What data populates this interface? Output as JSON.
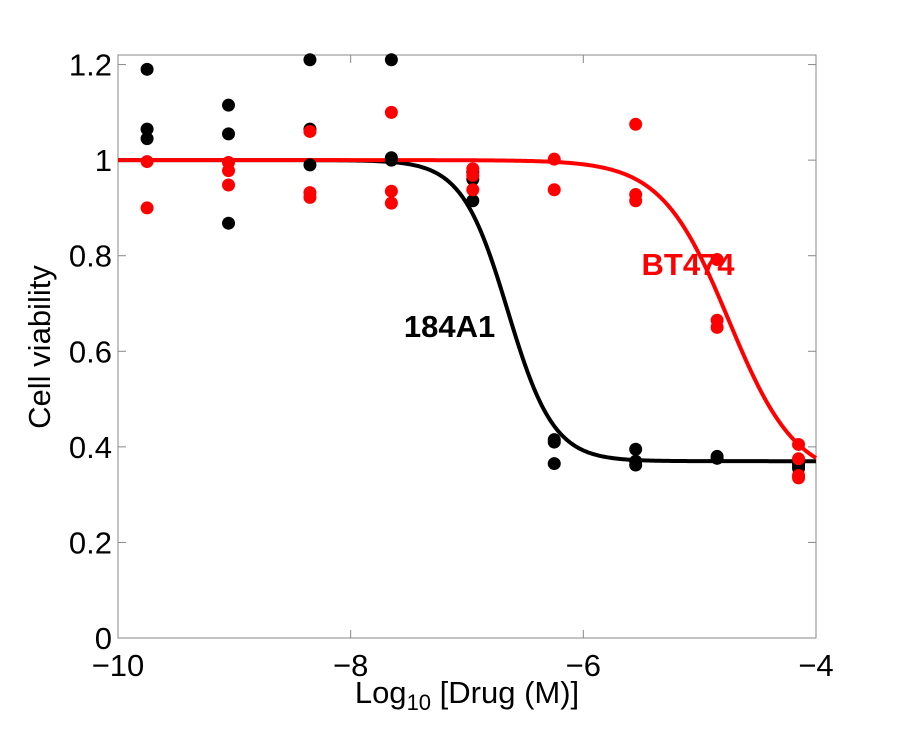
{
  "chart_data": {
    "type": "scatter",
    "xlabel": {
      "base": "Log",
      "sub": "10",
      "rest": " [Drug (M)]"
    },
    "ylabel": "Cell viability",
    "xlim": [
      -10,
      -4
    ],
    "ylim": [
      0,
      1.22
    ],
    "xticks": [
      -10,
      -8,
      -6,
      -4
    ],
    "xtick_labels": [
      "−10",
      "−8",
      "−6",
      "−4"
    ],
    "yticks": [
      0,
      0.2,
      0.4,
      0.6,
      0.8,
      1,
      1.2
    ],
    "ytick_labels": [
      "0",
      "0.2",
      "0.4",
      "0.6",
      "0.8",
      "1",
      "1.2"
    ],
    "grid": false,
    "series": [
      {
        "name": "184A1",
        "color": "#000000",
        "fit": {
          "top": 1.0,
          "bottom": 0.37,
          "log_ec50": -6.65,
          "hill": 2.2
        },
        "points": [
          [
            -9.75,
            1.19
          ],
          [
            -9.75,
            1.065
          ],
          [
            -9.75,
            1.045
          ],
          [
            -9.05,
            1.115
          ],
          [
            -9.05,
            1.055
          ],
          [
            -9.05,
            0.868
          ],
          [
            -8.35,
            1.21
          ],
          [
            -8.35,
            1.065
          ],
          [
            -8.35,
            0.99
          ],
          [
            -7.65,
            1.21
          ],
          [
            -7.65,
            1.005
          ],
          [
            -7.65,
            1.0
          ],
          [
            -6.95,
            0.975
          ],
          [
            -6.95,
            0.96
          ],
          [
            -6.95,
            0.915
          ],
          [
            -6.25,
            0.415
          ],
          [
            -6.25,
            0.41
          ],
          [
            -6.25,
            0.365
          ],
          [
            -5.55,
            0.395
          ],
          [
            -5.55,
            0.37
          ],
          [
            -5.55,
            0.362
          ],
          [
            -4.85,
            0.38
          ],
          [
            -4.85,
            0.376
          ],
          [
            -4.15,
            0.365
          ],
          [
            -4.15,
            0.36
          ],
          [
            -4.15,
            0.355
          ]
        ]
      },
      {
        "name": "BT474",
        "color": "#ff0000",
        "fit": {
          "top": 1.0,
          "bottom": 0.33,
          "log_ec50": -4.75,
          "hill": 1.5
        },
        "points": [
          [
            -9.75,
            0.997
          ],
          [
            -9.75,
            0.9
          ],
          [
            -9.05,
            0.995
          ],
          [
            -9.05,
            0.978
          ],
          [
            -9.05,
            0.948
          ],
          [
            -8.35,
            1.06
          ],
          [
            -8.35,
            0.932
          ],
          [
            -8.35,
            0.922
          ],
          [
            -7.65,
            1.1
          ],
          [
            -7.65,
            0.935
          ],
          [
            -7.65,
            0.91
          ],
          [
            -6.95,
            0.982
          ],
          [
            -6.95,
            0.968
          ],
          [
            -6.95,
            0.938
          ],
          [
            -6.25,
            1.002
          ],
          [
            -6.25,
            0.938
          ],
          [
            -5.55,
            1.075
          ],
          [
            -5.55,
            0.928
          ],
          [
            -5.55,
            0.915
          ],
          [
            -4.85,
            0.792
          ],
          [
            -4.85,
            0.665
          ],
          [
            -4.85,
            0.65
          ],
          [
            -4.15,
            0.405
          ],
          [
            -4.15,
            0.375
          ],
          [
            -4.15,
            0.34
          ],
          [
            -4.15,
            0.335
          ]
        ]
      }
    ],
    "annotations": [
      {
        "text": "184A1",
        "color": "#000000",
        "x": -7.15,
        "y": 0.63
      },
      {
        "text": "BT474",
        "color": "#ff0000",
        "x": -5.1,
        "y": 0.76
      }
    ]
  }
}
